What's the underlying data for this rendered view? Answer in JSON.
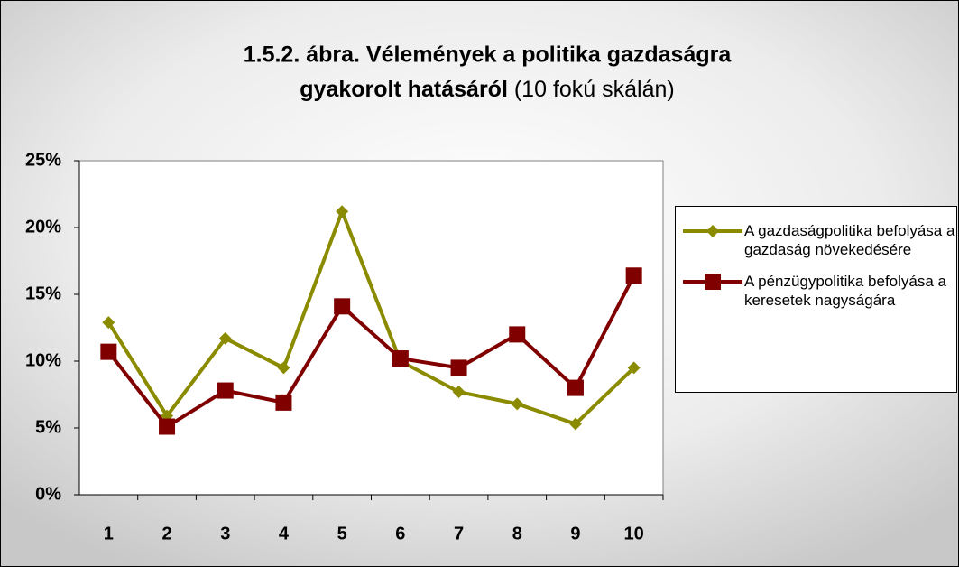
{
  "chart_data": {
    "type": "line",
    "title": [
      "1.5.2. ábra. Vélemények a politika gazdaságra",
      "gyakorolt hatásáról"
    ],
    "title_note": "(10 fokú skálán)",
    "categories": [
      "1",
      "2",
      "3",
      "4",
      "5",
      "6",
      "7",
      "8",
      "9",
      "10"
    ],
    "series": [
      {
        "name": "A gazdaságpolitika befolyása a gazdaság növekedésére",
        "color": "#8b8b00",
        "marker": "diamond",
        "values": [
          12.9,
          5.9,
          11.7,
          9.5,
          21.2,
          10.0,
          7.7,
          6.8,
          5.3,
          9.5
        ]
      },
      {
        "name": "A pénzügypolitika befolyása a keresetek nagyságára",
        "color": "#800000",
        "marker": "square",
        "values": [
          10.7,
          5.1,
          7.8,
          6.9,
          14.1,
          10.2,
          9.5,
          12.0,
          8.0,
          16.4
        ]
      }
    ],
    "ylim": [
      0,
      25
    ],
    "yticks": [
      {
        "value": 0,
        "label": "0%"
      },
      {
        "value": 5,
        "label": "5%"
      },
      {
        "value": 10,
        "label": "10%"
      },
      {
        "value": 15,
        "label": "15%"
      },
      {
        "value": 20,
        "label": "20%"
      },
      {
        "value": 25,
        "label": "25%"
      }
    ],
    "grid": false
  }
}
